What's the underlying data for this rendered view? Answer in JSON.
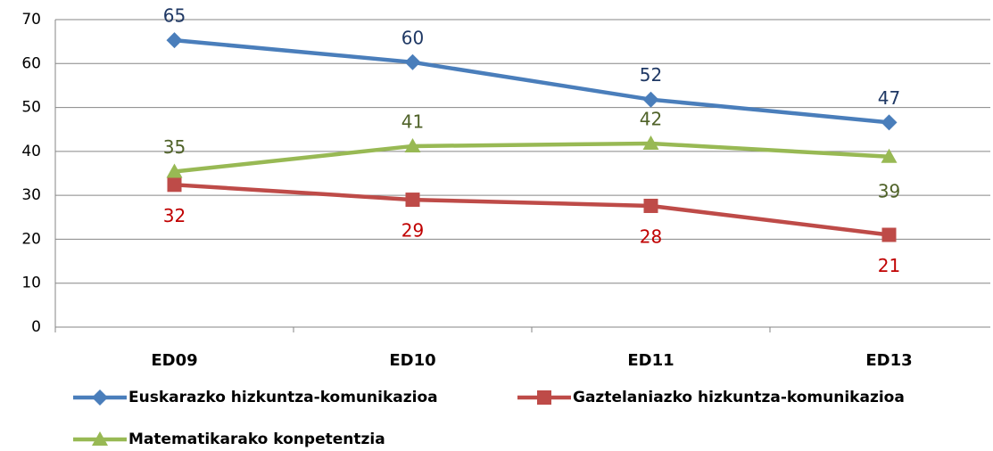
{
  "chart_data": {
    "type": "line",
    "categories": [
      "ED09",
      "ED10",
      "ED11",
      "ED13"
    ],
    "series": [
      {
        "name": "Euskarazko hizkuntza-komunikazioa",
        "color": "#4a7ebb",
        "label_color": "#1f3864",
        "marker": "diamond",
        "values": [
          65.3,
          60.3,
          51.8,
          46.6
        ],
        "value_labels": [
          "65",
          "60",
          "52",
          "47"
        ]
      },
      {
        "name": "Gaztelaniazko hizkuntza-komunikazioa",
        "color": "#be4b48",
        "label_color": "#c00000",
        "marker": "square",
        "values": [
          32.4,
          29,
          27.6,
          21
        ],
        "value_labels": [
          "32",
          "29",
          "28",
          "21"
        ]
      },
      {
        "name": "Matematikarako konpetentzia",
        "color": "#98b954",
        "label_color": "#4f6228",
        "marker": "triangle",
        "values": [
          35.4,
          41.2,
          41.8,
          38.8
        ],
        "value_labels": [
          "35",
          "41",
          "42",
          "39"
        ]
      }
    ],
    "ylim": [
      0,
      70
    ],
    "yticks": [
      0,
      10,
      20,
      30,
      40,
      50,
      60,
      70
    ],
    "grid": true
  }
}
